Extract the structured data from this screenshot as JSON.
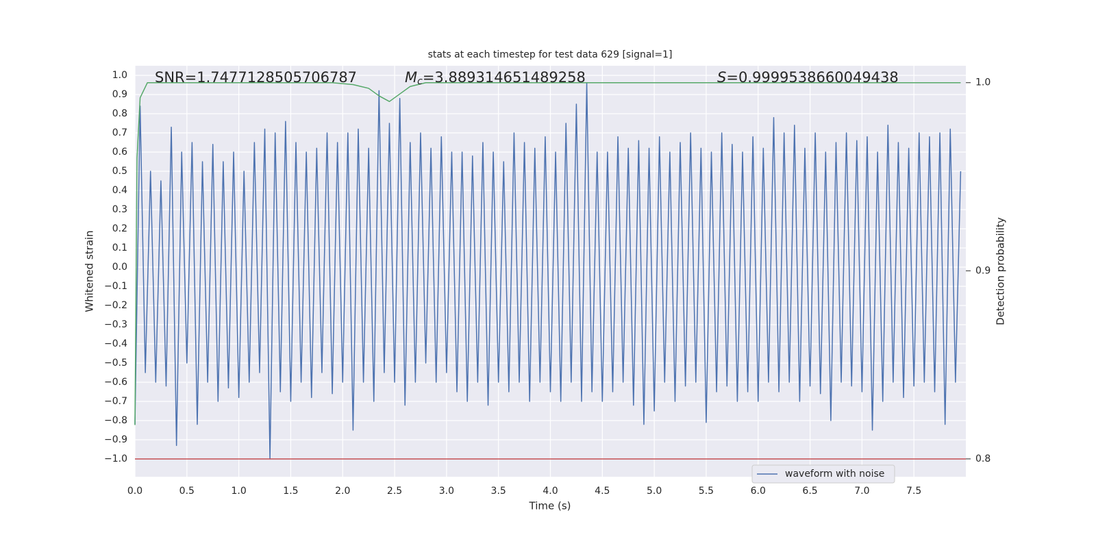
{
  "chart_data": {
    "type": "line",
    "title": "stats at each timestep for test data 629 [signal=1]",
    "xlabel": "Time (s)",
    "ylabel": "Whitened strain",
    "y2label": "Detection probability",
    "xlim": [
      0,
      8.0
    ],
    "ylim": [
      -1.093,
      1.05
    ],
    "y2lim": [
      0.7905,
      1.009
    ],
    "xticks": [
      {
        "value": 0,
        "label": "0.0"
      },
      0.5,
      {
        "value": 1,
        "label": "1.0"
      },
      1.5,
      {
        "value": 2,
        "label": "2.0"
      },
      2.5,
      {
        "value": 3,
        "label": "3.0"
      },
      3.5,
      {
        "value": 4,
        "label": "4.0"
      },
      4.5,
      {
        "value": 5,
        "label": "5.0"
      },
      5.5,
      {
        "value": 6,
        "label": "6.0"
      },
      6.5,
      {
        "value": 7,
        "label": "7.0"
      },
      7.5
    ],
    "yticks": [
      {
        "value": -1.0,
        "label": "−1.0"
      },
      {
        "value": -0.9,
        "label": "−0.9"
      },
      {
        "value": -0.8,
        "label": "−0.8"
      },
      {
        "value": -0.7,
        "label": "−0.7"
      },
      {
        "value": -0.6,
        "label": "−0.6"
      },
      {
        "value": -0.5,
        "label": "−0.5"
      },
      {
        "value": -0.4,
        "label": "−0.4"
      },
      {
        "value": -0.3,
        "label": "−0.3"
      },
      {
        "value": -0.2,
        "label": "−0.2"
      },
      {
        "value": -0.1,
        "label": "−0.1"
      },
      {
        "value": 0,
        "label": "0.0"
      },
      0.1,
      0.2,
      0.3,
      0.4,
      0.5,
      0.6,
      0.7,
      0.8,
      0.9,
      {
        "value": 1,
        "label": "1.0"
      }
    ],
    "y2ticks": [
      0.8,
      0.9,
      {
        "value": 1,
        "label": "1.0"
      }
    ],
    "grid": true,
    "legend": "lower right",
    "hline": {
      "value": -1.0,
      "color": "#c44e52"
    },
    "annotations": [
      {
        "text": "SNR=1.7477128505706787"
      },
      {
        "symbol": "M",
        "subscript": "c",
        "text": "=3.889314651489258"
      },
      {
        "symbol": "S",
        "text": "=0.9999538660049438"
      }
    ],
    "series": [
      {
        "name": "waveform with noise",
        "color": "#4c72b0",
        "x": [
          0,
          0.05,
          0.1,
          0.15,
          0.2,
          0.25,
          0.3,
          0.35,
          0.4,
          0.45,
          0.5,
          0.55,
          0.6,
          0.65,
          0.7,
          0.75,
          0.8,
          0.85,
          0.9,
          0.95,
          1,
          1.05,
          1.1,
          1.15,
          1.2,
          1.25,
          1.3,
          1.35,
          1.4,
          1.45,
          1.5,
          1.55,
          1.6,
          1.65,
          1.7,
          1.75,
          1.8,
          1.85,
          1.9,
          1.95,
          2,
          2.05,
          2.1,
          2.15,
          2.2,
          2.25,
          2.3,
          2.35,
          2.4,
          2.45,
          2.5,
          2.55,
          2.6,
          2.65,
          2.7,
          2.75,
          2.8,
          2.85,
          2.9,
          2.95,
          3,
          3.05,
          3.1,
          3.15,
          3.2,
          3.25,
          3.3,
          3.35,
          3.4,
          3.45,
          3.5,
          3.55,
          3.6,
          3.65,
          3.7,
          3.75,
          3.8,
          3.85,
          3.9,
          3.95,
          4,
          4.05,
          4.1,
          4.15,
          4.2,
          4.25,
          4.3,
          4.35,
          4.4,
          4.45,
          4.5,
          4.55,
          4.6,
          4.65,
          4.7,
          4.75,
          4.8,
          4.85,
          4.9,
          4.95,
          5,
          5.05,
          5.1,
          5.15,
          5.2,
          5.25,
          5.3,
          5.35,
          5.4,
          5.45,
          5.5,
          5.55,
          5.6,
          5.65,
          5.7,
          5.75,
          5.8,
          5.85,
          5.9,
          5.95,
          6,
          6.05,
          6.1,
          6.15,
          6.2,
          6.25,
          6.3,
          6.35,
          6.4,
          6.45,
          6.5,
          6.55,
          6.6,
          6.65,
          6.7,
          6.75,
          6.8,
          6.85,
          6.9,
          6.95,
          7,
          7.05,
          7.1,
          7.15,
          7.2,
          7.25,
          7.3,
          7.35,
          7.4,
          7.45,
          7.5,
          7.55,
          7.6,
          7.65,
          7.7,
          7.75,
          7.8,
          7.85,
          7.9,
          7.95
        ],
        "values": [
          -0.82,
          0.84,
          -0.55,
          0.5,
          -0.6,
          0.45,
          -0.62,
          0.73,
          -0.93,
          0.6,
          -0.5,
          0.65,
          -0.82,
          0.55,
          -0.6,
          0.64,
          -0.7,
          0.55,
          -0.63,
          0.6,
          -0.68,
          0.5,
          -0.6,
          0.65,
          -0.55,
          0.72,
          -1.0,
          0.7,
          -0.65,
          0.76,
          -0.7,
          0.65,
          -0.6,
          0.6,
          -0.68,
          0.62,
          -0.55,
          0.7,
          -0.66,
          0.65,
          -0.6,
          0.7,
          -0.85,
          0.72,
          -0.6,
          0.62,
          -0.7,
          0.92,
          -0.55,
          0.75,
          -0.6,
          0.88,
          -0.72,
          0.65,
          -0.6,
          0.7,
          -0.5,
          0.62,
          -0.6,
          0.68,
          -0.55,
          0.6,
          -0.65,
          0.6,
          -0.7,
          0.58,
          -0.6,
          0.65,
          -0.72,
          0.6,
          -0.6,
          0.55,
          -0.65,
          0.7,
          -0.6,
          0.65,
          -0.7,
          0.62,
          -0.6,
          0.68,
          -0.65,
          0.6,
          -0.7,
          0.75,
          -0.6,
          0.85,
          -0.7,
          0.96,
          -0.65,
          0.6,
          -0.7,
          0.6,
          -0.65,
          0.68,
          -0.6,
          0.62,
          -0.72,
          0.66,
          -0.82,
          0.62,
          -0.75,
          0.68,
          -0.6,
          0.6,
          -0.7,
          0.65,
          -0.62,
          0.7,
          -0.6,
          0.62,
          -0.81,
          0.6,
          -0.65,
          0.7,
          -0.62,
          0.64,
          -0.7,
          0.6,
          -0.65,
          0.68,
          -0.7,
          0.62,
          -0.6,
          0.78,
          -0.65,
          0.7,
          -0.6,
          0.74,
          -0.7,
          0.62,
          -0.62,
          0.7,
          -0.66,
          0.6,
          -0.8,
          0.65,
          -0.6,
          0.7,
          -0.62,
          0.66,
          -0.65,
          0.68,
          -0.85,
          0.6,
          -0.7,
          0.74,
          -0.6,
          0.65,
          -0.68,
          0.62,
          -0.62,
          0.7,
          -0.6,
          0.68,
          -0.65,
          0.7,
          -0.82,
          0.72,
          -0.6,
          0.5
        ]
      },
      {
        "color": "#55a868",
        "axis": "y2",
        "x": [
          0,
          0.02,
          0.05,
          0.12,
          1.9,
          2.1,
          2.25,
          2.35,
          2.45,
          2.55,
          2.65,
          2.8,
          7.95
        ],
        "values": [
          0.818,
          0.96,
          0.992,
          1.0,
          1.0,
          0.999,
          0.997,
          0.993,
          0.99,
          0.994,
          0.998,
          1.0,
          1.0
        ]
      }
    ]
  }
}
